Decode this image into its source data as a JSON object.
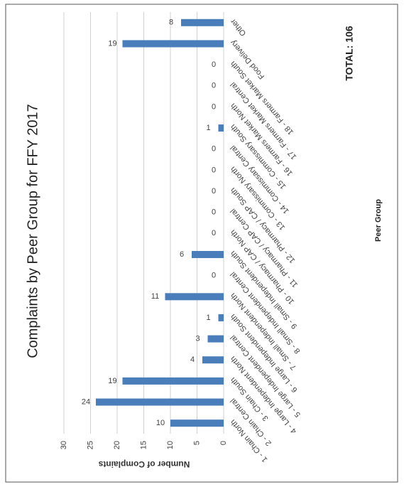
{
  "chart_data": {
    "type": "bar",
    "title": "Complaints by Peer Group for FFY 2017",
    "x_label": "Peer Group",
    "y_label": "Number of Complaints",
    "annotation": "TOTAL: 106",
    "categories": [
      "1 - Chain North",
      "2 - Chain Central",
      "3 - Chain South",
      "4 - Large Independent North",
      "5 - Large Independent Central",
      "6 - Large Independent South",
      "7 - Small Independent North",
      "8 - Small Independent Central",
      "9 - Small Independent South",
      "10 - Pharmacy / CAP North",
      "11 - Pharmacy / CAP Central",
      "12 - Pharmacy / CAP South",
      "13 - Commissary North",
      "14 - Commissary Central",
      "15 - Commissary South",
      "16 - Farmers Market North",
      "17 - Farmers Market Central",
      "18 - Farmers Market South",
      "Food Delivery",
      "Other"
    ],
    "values": [
      10,
      24,
      19,
      4,
      3,
      1,
      11,
      0,
      6,
      0,
      0,
      0,
      0,
      0,
      1,
      0,
      0,
      0,
      19,
      8
    ],
    "color": "#4a7ebb",
    "ylim": [
      0,
      30
    ],
    "yticks": [
      0,
      5,
      10,
      15,
      20,
      25,
      30
    ],
    "grid": true
  }
}
